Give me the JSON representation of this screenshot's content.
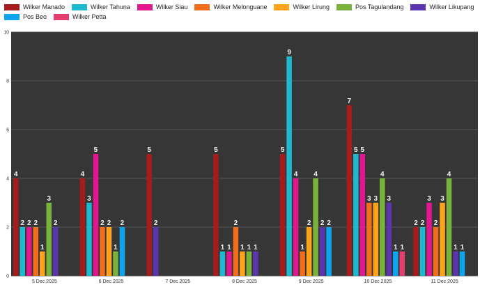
{
  "chart_data": {
    "type": "bar",
    "categories": [
      "5 Dec 2025",
      "6 Dec 2025",
      "7 Dec 2025",
      "8 Dec 2025",
      "9 Dec 2025",
      "10 Dec 2025",
      "11 Dec 2025"
    ],
    "ylim": [
      0,
      10
    ],
    "yticks": [
      "0",
      "2",
      "4",
      "6",
      "8",
      "10"
    ],
    "grid": true,
    "legend_position": "top",
    "background_color": "#363636",
    "series": [
      {
        "name": "Wilker Manado",
        "color": "#a51c1c",
        "values": [
          4,
          4,
          5,
          5,
          5,
          7,
          2
        ]
      },
      {
        "name": "Wilker Tahuna",
        "color": "#1eb9cf",
        "values": [
          2,
          3,
          null,
          1,
          9,
          5,
          2
        ]
      },
      {
        "name": "Wilker Siau",
        "color": "#e2168f",
        "values": [
          2,
          5,
          null,
          1,
          4,
          5,
          3
        ]
      },
      {
        "name": "Wilker Melonguane",
        "color": "#f26d1c",
        "values": [
          2,
          2,
          null,
          2,
          1,
          3,
          2
        ]
      },
      {
        "name": "Wilker Lirung",
        "color": "#ffa31a",
        "values": [
          1,
          2,
          null,
          1,
          2,
          3,
          3
        ]
      },
      {
        "name": "Pos Tagulandang",
        "color": "#7ab33c",
        "values": [
          3,
          1,
          null,
          1,
          4,
          4,
          4
        ]
      },
      {
        "name": "Wilker Likupang",
        "color": "#5b35b0",
        "values": [
          2,
          null,
          2,
          1,
          2,
          3,
          1
        ]
      },
      {
        "name": "Pos Beo",
        "color": "#0ea5ee",
        "values": [
          null,
          2,
          null,
          null,
          2,
          1,
          1
        ]
      },
      {
        "name": "Wilker Petta",
        "color": "#e33e70",
        "values": [
          null,
          null,
          null,
          null,
          null,
          1,
          null
        ]
      }
    ]
  }
}
